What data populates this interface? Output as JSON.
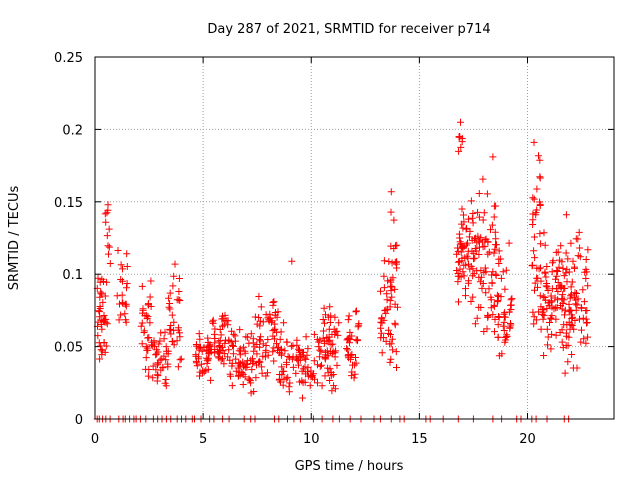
{
  "chart_data": {
    "type": "scatter",
    "title": "Day 287 of 2021, SRMTID for receiver p714",
    "xlabel": "GPS time / hours",
    "ylabel": "SRMTID / TECUs",
    "xlim": [
      0,
      24
    ],
    "ylim": [
      0,
      0.25
    ],
    "x_ticks": [
      0,
      5,
      10,
      15,
      20
    ],
    "x_tick_labels": [
      "0",
      "5",
      "10",
      "15",
      "20"
    ],
    "y_ticks": [
      0,
      0.05,
      0.1,
      0.15,
      0.2,
      0.25
    ],
    "y_tick_labels": [
      "0",
      "0.05",
      "0.1",
      "0.15",
      "0.2",
      "0.25"
    ],
    "grid": true,
    "marker_color": "#ff0000",
    "marker": "plus",
    "clusters": [
      {
        "x": [
          0.1,
          0.6
        ],
        "ylo": 0.04,
        "yhi": 0.1,
        "n": 40
      },
      {
        "x": [
          0.45,
          0.75
        ],
        "ylo": 0.1,
        "yhi": 0.15,
        "n": 10
      },
      {
        "x": [
          1.0,
          1.5
        ],
        "ylo": 0.04,
        "yhi": 0.12,
        "n": 22
      },
      {
        "x": [
          2.1,
          2.6
        ],
        "ylo": 0.02,
        "yhi": 0.1,
        "n": 30
      },
      {
        "x": [
          2.6,
          3.4
        ],
        "ylo": 0.02,
        "yhi": 0.065,
        "n": 40
      },
      {
        "x": [
          3.4,
          4.0
        ],
        "ylo": 0.03,
        "yhi": 0.108,
        "n": 30
      },
      {
        "x": [
          4.6,
          5.4
        ],
        "ylo": 0.025,
        "yhi": 0.06,
        "n": 45
      },
      {
        "x": [
          5.4,
          6.2
        ],
        "ylo": 0.03,
        "yhi": 0.08,
        "n": 45
      },
      {
        "x": [
          6.2,
          7.4
        ],
        "ylo": 0.012,
        "yhi": 0.065,
        "n": 65
      },
      {
        "x": [
          7.4,
          8.5
        ],
        "ylo": 0.02,
        "yhi": 0.09,
        "n": 60
      },
      {
        "x": [
          8.5,
          9.6
        ],
        "ylo": 0.01,
        "yhi": 0.07,
        "n": 55
      },
      {
        "x": [
          9.6,
          10.5
        ],
        "ylo": 0.02,
        "yhi": 0.06,
        "n": 35
      },
      {
        "x": [
          10.5,
          11.3
        ],
        "ylo": 0.015,
        "yhi": 0.085,
        "n": 55
      },
      {
        "x": [
          11.6,
          12.2
        ],
        "ylo": 0.02,
        "yhi": 0.08,
        "n": 35
      },
      {
        "x": [
          13.2,
          13.6
        ],
        "ylo": 0.04,
        "yhi": 0.115,
        "n": 25
      },
      {
        "x": [
          13.6,
          14.0
        ],
        "ylo": 0.02,
        "yhi": 0.16,
        "n": 35
      },
      {
        "x": [
          16.7,
          17.6
        ],
        "ylo": 0.06,
        "yhi": 0.17,
        "n": 70
      },
      {
        "x": [
          16.8,
          17.0
        ],
        "ylo": 0.18,
        "yhi": 0.206,
        "n": 8
      },
      {
        "x": [
          17.6,
          18.6
        ],
        "ylo": 0.045,
        "yhi": 0.18,
        "n": 70
      },
      {
        "x": [
          18.6,
          19.3
        ],
        "ylo": 0.025,
        "yhi": 0.13,
        "n": 45
      },
      {
        "x": [
          20.2,
          20.6
        ],
        "ylo": 0.04,
        "yhi": 0.19,
        "n": 35
      },
      {
        "x": [
          20.6,
          21.7
        ],
        "ylo": 0.04,
        "yhi": 0.13,
        "n": 85
      },
      {
        "x": [
          21.7,
          22.8
        ],
        "ylo": 0.025,
        "yhi": 0.14,
        "n": 80
      }
    ],
    "specific_points": [
      {
        "x": 9.1,
        "y": 0.109
      },
      {
        "x": 3.7,
        "y": 0.107
      },
      {
        "x": 20.3,
        "y": 0.191
      },
      {
        "x": 16.9,
        "y": 0.205
      },
      {
        "x": 18.4,
        "y": 0.181
      },
      {
        "x": 13.7,
        "y": 0.157
      },
      {
        "x": 21.8,
        "y": 0.141
      },
      {
        "x": 0.6,
        "y": 0.148
      }
    ],
    "zero_points_x": [
      0.1,
      0.2,
      0.35,
      0.5,
      0.7,
      1.1,
      1.3,
      1.4,
      1.6,
      1.8,
      1.9,
      2.1,
      2.35,
      2.7,
      2.9,
      3.1,
      3.3,
      3.5,
      3.8,
      4.0,
      4.2,
      4.5,
      4.6,
      4.9,
      5.3,
      5.5,
      5.9,
      6.2,
      6.9,
      7.2,
      7.4,
      8.3,
      8.5,
      8.9,
      9.2,
      9.5,
      10.1,
      10.5,
      11.0,
      11.3,
      11.8,
      12.3,
      12.9,
      13.2,
      13.7,
      14.1,
      14.3,
      15.3,
      15.5,
      16.1,
      16.8,
      17.5,
      18.4,
      18.8,
      19.5,
      19.7,
      20.2,
      20.4,
      20.9,
      21.7,
      21.9
    ]
  }
}
